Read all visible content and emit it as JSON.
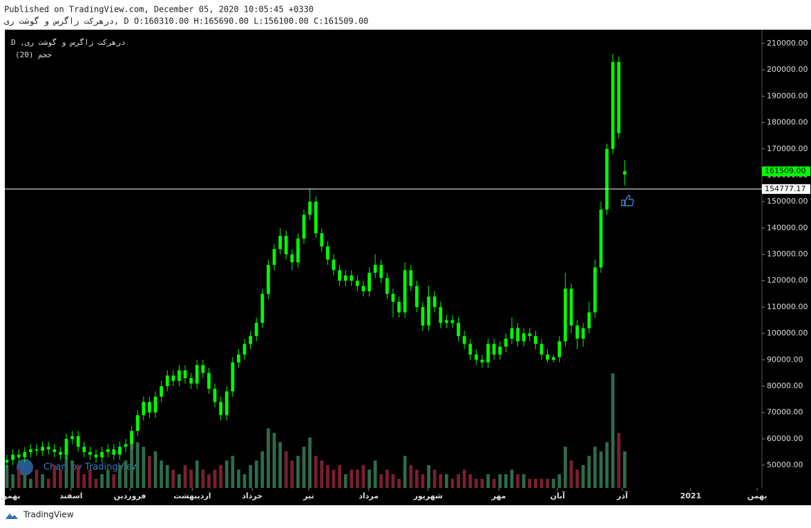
{
  "header": {
    "published": "Published on TradingView.com, December 05, 2020 10:05:45 +0330",
    "ohlc_line": "درهرکت زاگرس و گوشت ری, D O:160310.00 H:165690.00 L:156100.00 C:161509.00"
  },
  "chart_data": {
    "type": "candlestick",
    "symbol_legend": "D ,درهرکت زاگرس و گوشت ری",
    "indicator_legend": "حجم (20)",
    "watermark": "Chart by TradingView",
    "footer": "TradingView",
    "up_color": "#00ff00",
    "down_color": "#00ff00",
    "volume_up_color": "#2e6b4c",
    "volume_down_color": "#7a1f2e",
    "xlim": [
      -0.35,
      127.1
    ],
    "xticks": [
      {
        "value": 0.6,
        "label": "بهمن"
      },
      {
        "value": 10.8,
        "label": "اسفند"
      },
      {
        "value": 20.7,
        "label": "فروردین"
      },
      {
        "value": 31.2,
        "label": "اردیبهشت"
      },
      {
        "value": 41.3,
        "label": "خرداد"
      },
      {
        "value": 50.8,
        "label": "تیر"
      },
      {
        "value": 60.9,
        "label": "مرداد"
      },
      {
        "value": 70.9,
        "label": "شهریور"
      },
      {
        "value": 82.8,
        "label": "مهر"
      },
      {
        "value": 92.7,
        "label": "آبان"
      },
      {
        "value": 103.6,
        "label": "آذر"
      },
      {
        "value": 115.1,
        "label": "2021"
      },
      {
        "value": 126.3,
        "label": "بهمن"
      }
    ],
    "ylim": [
      41360,
      215240
    ],
    "yticks": [
      {
        "value": 50000,
        "label": "50000.00"
      },
      {
        "value": 60000,
        "label": "60000.00"
      },
      {
        "value": 70000,
        "label": "70000.00"
      },
      {
        "value": 80000,
        "label": "80000.00"
      },
      {
        "value": 90000,
        "label": "90000.00"
      },
      {
        "value": 100000,
        "label": "100000.00"
      },
      {
        "value": 110000,
        "label": "110000.00"
      },
      {
        "value": 120000,
        "label": "120000.00"
      },
      {
        "value": 130000,
        "label": "130000.00"
      },
      {
        "value": 140000,
        "label": "140000.00"
      },
      {
        "value": 150000,
        "label": "150000.00"
      },
      {
        "value": 160000,
        "label": "160000.00"
      },
      {
        "value": 170000,
        "label": "170000.00"
      },
      {
        "value": 180000,
        "label": "180000.00"
      },
      {
        "value": 190000,
        "label": "190000.00"
      },
      {
        "value": 200000,
        "label": "200000.00"
      },
      {
        "value": 210000,
        "label": "210000.00"
      }
    ],
    "y2lim": [
      0,
      100
    ],
    "price_line": {
      "value": 154777.17,
      "label": "154777.17"
    },
    "last_label": {
      "value": 161509,
      "label": "161509.00"
    },
    "open": [
      51000,
      52000,
      54000,
      53000,
      55000,
      56000,
      55500,
      57000,
      56000,
      55000,
      54000,
      60000,
      61000,
      57000,
      55000,
      54000,
      53000,
      55000,
      56000,
      54000,
      57000,
      58000,
      63000,
      69000,
      74000,
      70000,
      76000,
      80000,
      84000,
      82000,
      86000,
      83000,
      81000,
      88000,
      85000,
      79000,
      74000,
      69000,
      78000,
      89000,
      92000,
      96000,
      99000,
      104000,
      115000,
      126000,
      132000,
      137000,
      130000,
      127000,
      136000,
      145000,
      150000,
      138000,
      133000,
      128000,
      124000,
      120000,
      122000,
      120000,
      118000,
      116000,
      123000,
      126000,
      121000,
      115000,
      112000,
      108000,
      124000,
      118000,
      110000,
      103000,
      114000,
      110000,
      104000,
      105000,
      104000,
      99000,
      96000,
      92000,
      90000,
      89000,
      96000,
      92000,
      95000,
      98000,
      102000,
      97000,
      100000,
      99000,
      96000,
      92000,
      90000,
      91000,
      97000,
      117000,
      103000,
      98000,
      102000,
      108000,
      125000,
      147000,
      170000,
      203000,
      160310
    ],
    "high": [
      54000,
      56000,
      56000,
      57000,
      58000,
      58000,
      59000,
      59000,
      58000,
      57000,
      62000,
      63000,
      63000,
      59000,
      57000,
      56000,
      57000,
      58000,
      58000,
      59000,
      60000,
      65000,
      71000,
      76000,
      76000,
      78000,
      82000,
      86000,
      86000,
      88000,
      88000,
      85000,
      90000,
      90000,
      87000,
      81000,
      76000,
      80000,
      91000,
      94000,
      98000,
      101000,
      106000,
      117000,
      128000,
      134000,
      140000,
      139000,
      132000,
      138000,
      147000,
      155000,
      152000,
      140000,
      135000,
      130000,
      126000,
      124000,
      124000,
      122000,
      120000,
      125000,
      130000,
      128000,
      123000,
      117000,
      114000,
      127000,
      126000,
      120000,
      112000,
      118000,
      116000,
      112000,
      107000,
      107000,
      106000,
      101000,
      98000,
      94000,
      92000,
      98000,
      98000,
      97000,
      100000,
      106000,
      104000,
      102000,
      102000,
      101000,
      98000,
      94000,
      92000,
      99000,
      123000,
      119000,
      105000,
      104000,
      112000,
      128000,
      150000,
      172000,
      206000,
      205000,
      165690
    ],
    "low": [
      49000,
      50000,
      51000,
      51000,
      53000,
      53500,
      53500,
      54000,
      53000,
      52000,
      52000,
      58000,
      55000,
      53000,
      52000,
      51000,
      51000,
      53000,
      52000,
      52000,
      55000,
      56000,
      61000,
      67000,
      68000,
      68000,
      74000,
      78000,
      80000,
      80000,
      81000,
      79000,
      79000,
      83000,
      77000,
      72000,
      67000,
      67000,
      76000,
      87000,
      90000,
      94000,
      97000,
      102000,
      113000,
      124000,
      130000,
      128000,
      124000,
      125000,
      134000,
      143000,
      136000,
      131000,
      126000,
      122000,
      118000,
      118000,
      118000,
      116000,
      114000,
      114000,
      121000,
      119000,
      113000,
      106000,
      106000,
      106000,
      116000,
      108000,
      101000,
      101000,
      108000,
      102000,
      102000,
      102000,
      97000,
      94000,
      90000,
      88000,
      87000,
      87000,
      90000,
      90000,
      93000,
      96000,
      95000,
      95000,
      97000,
      94000,
      90000,
      89000,
      89000,
      89000,
      95000,
      100000,
      94000,
      95000,
      100000,
      106000,
      123000,
      145000,
      168000,
      174000,
      156100
    ],
    "close": [
      52000,
      54000,
      53000,
      55000,
      56000,
      55500,
      57000,
      56000,
      55000,
      54000,
      60000,
      61000,
      57000,
      55000,
      54000,
      53000,
      55000,
      56000,
      54000,
      57000,
      58000,
      63000,
      69000,
      74000,
      70000,
      76000,
      80000,
      84000,
      82000,
      86000,
      83000,
      81000,
      88000,
      85000,
      79000,
      74000,
      69000,
      78000,
      89000,
      92000,
      96000,
      99000,
      104000,
      115000,
      126000,
      132000,
      137000,
      130000,
      127000,
      136000,
      145000,
      150000,
      138000,
      133000,
      128000,
      124000,
      120000,
      122000,
      120000,
      118000,
      116000,
      123000,
      126000,
      121000,
      115000,
      112000,
      108000,
      124000,
      118000,
      110000,
      103000,
      114000,
      110000,
      104000,
      105000,
      104000,
      99000,
      96000,
      92000,
      90000,
      89000,
      96000,
      92000,
      95000,
      98000,
      102000,
      97000,
      100000,
      99000,
      96000,
      92000,
      90000,
      91000,
      97000,
      117000,
      103000,
      98000,
      102000,
      108000,
      125000,
      147000,
      170000,
      203000,
      176000,
      161509
    ],
    "volume": [
      5,
      3,
      4,
      3,
      2,
      4,
      3,
      2,
      5,
      4,
      9,
      6,
      5,
      3,
      4,
      2,
      3,
      4,
      3,
      5,
      6,
      12,
      10,
      9,
      7,
      8,
      6,
      5,
      4,
      3,
      5,
      4,
      6,
      4,
      3,
      4,
      5,
      6,
      7,
      4,
      3,
      5,
      6,
      8,
      13,
      12,
      10,
      8,
      6,
      7,
      9,
      11,
      7,
      6,
      5,
      4,
      5,
      3,
      4,
      4,
      5,
      4,
      6,
      3,
      4,
      3,
      2,
      7,
      5,
      4,
      3,
      5,
      4,
      3,
      3,
      2,
      3,
      4,
      3,
      2,
      2,
      3,
      2,
      3,
      3,
      4,
      3,
      3,
      2,
      2,
      2,
      2,
      2,
      3,
      9,
      6,
      4,
      5,
      7,
      9,
      8,
      10,
      25,
      12,
      8
    ]
  }
}
